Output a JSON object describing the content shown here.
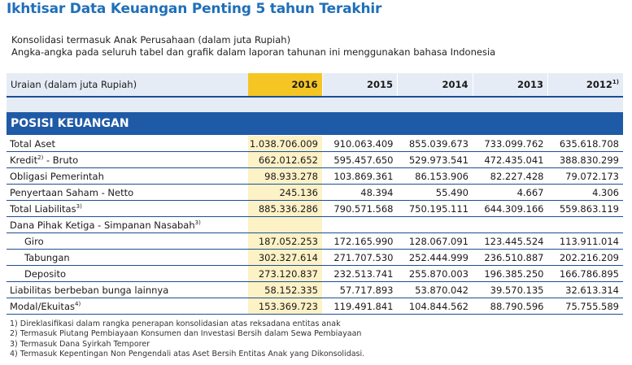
{
  "title": "Ikhtisar Data Keuangan Penting 5 tahun Terakhir",
  "subtitle1": "Konsolidasi termasuk Anak Perusahaan (dalam juta Rupiah)",
  "subtitle2": "Angka-angka pada seluruh tabel dan grafik dalam laporan tahunan ini menggunakan bahasa Indonesia",
  "table": {
    "header": {
      "label": "Uraian (dalam juta Rupiah)",
      "years": [
        "2016",
        "2015",
        "2014",
        "2013",
        "2012"
      ],
      "last_year_note": "1)"
    },
    "section": "POSISI KEUANGAN",
    "rows": [
      {
        "label": "Total Aset",
        "note": "",
        "indent": false,
        "values": [
          "1.038.706.009",
          "910.063.409",
          "855.039.673",
          "733.099.762",
          "635.618.708"
        ]
      },
      {
        "label": "Kredit",
        "note": "2)",
        "suffix": " - Bruto",
        "indent": false,
        "values": [
          "662.012.652",
          "595.457.650",
          "529.973.541",
          "472.435.041",
          "388.830.299"
        ]
      },
      {
        "label": "Obligasi Pemerintah",
        "note": "",
        "indent": false,
        "values": [
          "98.933.278",
          "103.869.361",
          "86.153.906",
          "82.227.428",
          "79.072.173"
        ]
      },
      {
        "label": "Penyertaan Saham - Netto",
        "note": "",
        "indent": false,
        "values": [
          "245.136",
          "48.394",
          "55.490",
          "4.667",
          "4.306"
        ]
      },
      {
        "label": "Total Liabilitas",
        "note": "3)",
        "suffix": "",
        "indent": false,
        "values": [
          "885.336.286",
          "790.571.568",
          "750.195.111",
          "644.309.166",
          "559.863.119"
        ]
      },
      {
        "label": "Dana Pihak Ketiga - Simpanan Nasabah",
        "note": "3)",
        "suffix": "",
        "indent": false,
        "values": [
          "",
          "",
          "",
          "",
          ""
        ]
      },
      {
        "label": "Giro",
        "note": "",
        "indent": true,
        "values": [
          "187.052.253",
          "172.165.990",
          "128.067.091",
          "123.445.524",
          "113.911.014"
        ]
      },
      {
        "label": "Tabungan",
        "note": "",
        "indent": true,
        "values": [
          "302.327.614",
          "271.707.530",
          "252.444.999",
          "236.510.887",
          "202.216.209"
        ]
      },
      {
        "label": "Deposito",
        "note": "",
        "indent": true,
        "values": [
          "273.120.837",
          "232.513.741",
          "255.870.003",
          "196.385.250",
          "166.786.895"
        ]
      },
      {
        "label": "Liabilitas berbeban bunga lainnya",
        "note": "",
        "indent": false,
        "values": [
          "58.152.335",
          "57.717.893",
          "53.870.042",
          "39.570.135",
          "32.613.314"
        ]
      },
      {
        "label": "Modal/Ekuitas",
        "note": "4)",
        "suffix": "",
        "indent": false,
        "values": [
          "153.369.723",
          "119.491.841",
          "104.844.562",
          "88.790.596",
          "75.755.589"
        ]
      }
    ]
  },
  "footnotes": [
    "1) Direklasifikasi dalam rangka penerapan konsolidasian atas reksadana entitas anak",
    "2) Termasuk Piutang Pembiayaan Konsumen dan Investasi Bersih dalam Sewa Pembiayaan",
    "3) Termasuk Dana Syirkah Temporer",
    "4) Termasuk Kepentingan Non Pengendali atas Aset Bersih Entitas Anak yang Dikonsolidasi."
  ]
}
